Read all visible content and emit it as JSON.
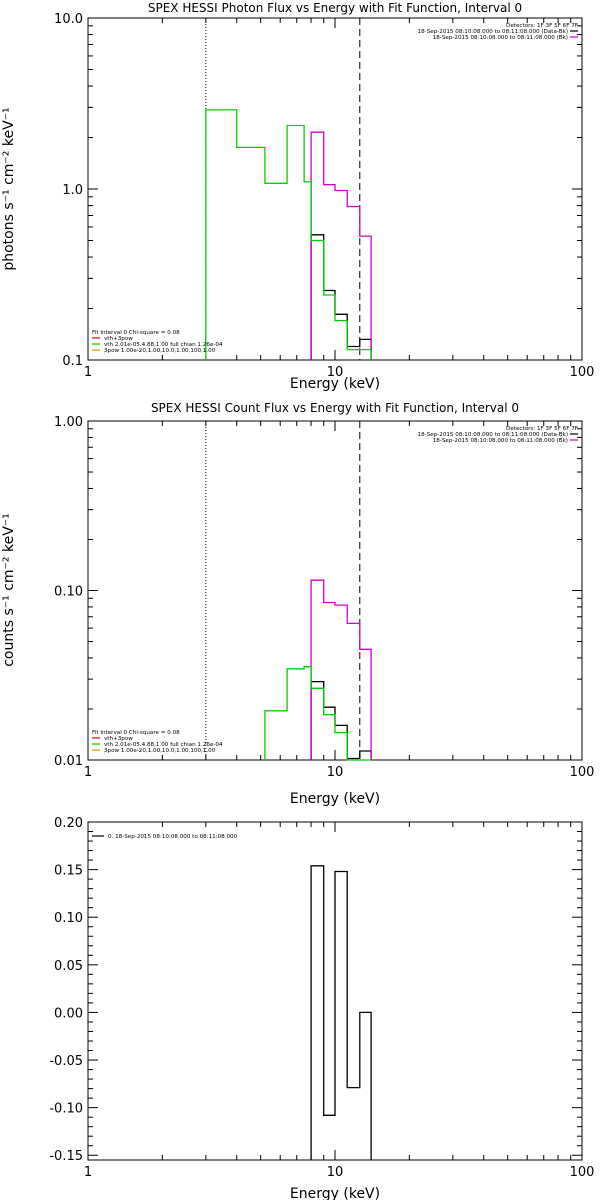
{
  "chart_data": [
    {
      "type": "line",
      "title": "SPEX HESSI Photon Flux vs Energy with Fit Function, Interval 0",
      "xlabel": "Energy (keV)",
      "ylabel": "photons s⁻¹ cm⁻² keV⁻¹",
      "x_scale": "log",
      "y_scale": "log",
      "xlim": [
        1,
        100
      ],
      "ylim": [
        0.1,
        10
      ],
      "x_ticks": [
        "1",
        "10",
        "100"
      ],
      "y_ticks": [
        {
          "v": 0.1,
          "label": "0.1"
        },
        {
          "v": 1,
          "label": "1.0"
        },
        {
          "v": 10,
          "label": "10.0"
        }
      ],
      "vlines": [
        {
          "x": 3.0,
          "style": "dotted"
        },
        {
          "x": 12.6,
          "style": "dashed"
        }
      ],
      "header_lines": [
        {
          "text": "Detectors: 1F 3F 5F 6F 7F",
          "color": ""
        },
        {
          "text": "18-Sep-2015 08:10:08.000 to 08:11:08.000 (Data-Bk)",
          "color": "#000000"
        },
        {
          "text": "18-Sep-2015 08:10:08.000 to 08:11:08.000 (Bk)",
          "color": "#d000d0"
        }
      ],
      "legend_lines": [
        {
          "text": "Fit Interval  0    Chi-square = 0.08",
          "color": ""
        },
        {
          "text": "vth+3pow",
          "color": "#d00000"
        },
        {
          "text": "vth 2.01e-05,4.88,1.00  full chian 1.26e-04",
          "color": "#00d000"
        },
        {
          "text": "3pow 1.00e-20,1.00,10.0,1.00,100,1.00",
          "color": "#d0a000"
        }
      ],
      "series": [
        {
          "color": "#000000",
          "edges": [
            8.0,
            9.0,
            10.0,
            11.2,
            12.6,
            14.0
          ],
          "values": [
            0.54,
            0.255,
            0.185,
            0.12,
            0.132
          ]
        },
        {
          "color": "#d000d0",
          "edges": [
            8.0,
            9.0,
            10.0,
            11.2,
            12.6,
            14.0
          ],
          "values": [
            2.15,
            1.06,
            0.98,
            0.79,
            0.53
          ]
        },
        {
          "color": "#00d000",
          "edges": [
            3.0,
            4.0,
            5.2,
            6.4,
            7.5,
            8.0,
            9.0,
            10.0,
            11.2,
            12.6,
            14.0
          ],
          "values": [
            2.9,
            1.75,
            1.08,
            2.35,
            1.1,
            0.5,
            0.24,
            0.17,
            0.115,
            0.115
          ]
        }
      ]
    },
    {
      "type": "line",
      "title": "SPEX HESSI Count Flux vs Energy with Fit Function, Interval 0",
      "xlabel": "Energy (keV)",
      "ylabel": "counts s⁻¹ cm⁻² keV⁻¹",
      "x_scale": "log",
      "y_scale": "log",
      "xlim": [
        1,
        100
      ],
      "ylim": [
        0.01,
        1.0
      ],
      "x_ticks": [
        "1",
        "10",
        "100"
      ],
      "y_ticks": [
        {
          "v": 0.01,
          "label": "0.01"
        },
        {
          "v": 0.1,
          "label": "0.10"
        },
        {
          "v": 1,
          "label": "1.00"
        }
      ],
      "vlines": [
        {
          "x": 3.0,
          "style": "dotted"
        },
        {
          "x": 12.6,
          "style": "dashed"
        }
      ],
      "header_lines": [
        {
          "text": "Detectors: 1F 3F 5F 6F 7F",
          "color": ""
        },
        {
          "text": "18-Sep-2015 08:10:08.000 to 08:11:08.000 (Data-Bk)",
          "color": "#000000"
        },
        {
          "text": "18-Sep-2015 08:10:08.000 to 08:11:08.000 (Bk)",
          "color": "#d000d0"
        }
      ],
      "legend_lines": [
        {
          "text": "Fit Interval  0    Chi-square = 0.08",
          "color": ""
        },
        {
          "text": "vth+3pow",
          "color": "#d00000"
        },
        {
          "text": "vth 2.01e-05,4.88,1.00  full chian 1.26e-04",
          "color": "#00d000"
        },
        {
          "text": "3pow 1.00e-20,1.00,10.0,1.00,100,1.00",
          "color": "#d0a000"
        }
      ],
      "series": [
        {
          "color": "#000000",
          "edges": [
            8.0,
            9.0,
            10.0,
            11.2,
            12.6,
            14.0
          ],
          "values": [
            0.029,
            0.0205,
            0.016,
            0.0102,
            0.0113
          ]
        },
        {
          "color": "#d000d0",
          "edges": [
            8.0,
            9.0,
            10.0,
            11.2,
            12.6,
            14.0
          ],
          "values": [
            0.115,
            0.085,
            0.082,
            0.064,
            0.045
          ]
        },
        {
          "color": "#00d000",
          "edges": [
            5.2,
            6.4,
            7.5,
            8.0,
            9.0,
            10.0,
            11.2,
            12.6,
            14.0
          ],
          "values": [
            0.0195,
            0.0345,
            0.0355,
            0.0265,
            0.0185,
            0.0145,
            0.0099,
            0.0099
          ]
        }
      ]
    },
    {
      "type": "line",
      "title": "",
      "xlabel": "Energy (keV)",
      "ylabel": "",
      "x_scale": "log",
      "y_scale": "linear",
      "xlim": [
        1,
        100
      ],
      "ylim": [
        -0.155,
        0.2
      ],
      "x_ticks": [
        "1",
        "10",
        "100"
      ],
      "y_ticks": [
        {
          "v": -0.15,
          "label": "-0.15"
        },
        {
          "v": -0.1,
          "label": "-0.10"
        },
        {
          "v": -0.05,
          "label": "-0.05"
        },
        {
          "v": 0.0,
          "label": "0.00"
        },
        {
          "v": 0.05,
          "label": "0.05"
        },
        {
          "v": 0.1,
          "label": "0.10"
        },
        {
          "v": 0.15,
          "label": "0.15"
        },
        {
          "v": 0.2,
          "label": "0.20"
        }
      ],
      "vlines": [],
      "header_lines": [],
      "legend_lines": [
        {
          "text": "0. 18-Sep-2015 08:10:08.000 to 08:11:08.000",
          "color": "#000000"
        }
      ],
      "series": [
        {
          "color": "#000000",
          "edges": [
            8.0,
            9.0,
            10.0,
            11.2,
            12.6,
            14.0
          ],
          "values": [
            0.154,
            -0.108,
            0.148,
            -0.079,
            0.0
          ]
        }
      ]
    }
  ]
}
